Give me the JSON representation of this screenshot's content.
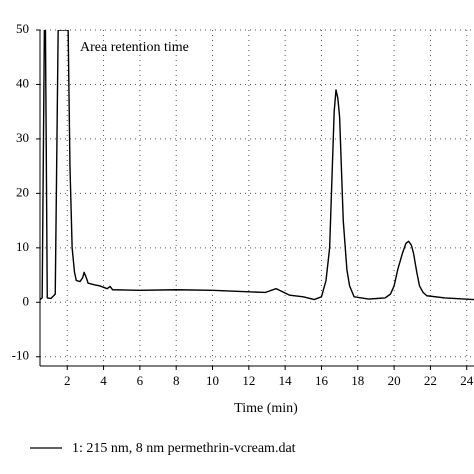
{
  "chart_data": {
    "type": "line",
    "annotation": "Area retention time",
    "x_label": "Time (min)",
    "x": [
      0.5,
      0.62,
      0.74,
      0.8,
      0.9,
      1.1,
      1.34,
      1.5,
      2.05,
      2.15,
      2.27,
      2.4,
      2.5,
      2.7,
      2.85,
      2.93,
      3.05,
      3.15,
      3.5,
      3.8,
      4.2,
      4.36,
      4.5,
      6,
      8,
      10,
      11.5,
      12.9,
      13.5,
      14.25,
      15,
      15.6,
      16,
      16.25,
      16.45,
      16.6,
      16.7,
      16.8,
      16.9,
      17,
      17.2,
      17.4,
      17.55,
      17.8,
      18.6,
      19.5,
      19.8,
      20,
      20.2,
      20.46,
      20.65,
      20.8,
      20.95,
      21.07,
      21.25,
      21.4,
      21.6,
      21.8,
      22.8,
      24.4
    ],
    "series": [
      {
        "name": "1: 215 nm, 8 nm permethrin-vcream.dat",
        "color": "#000000",
        "values": [
          0.5,
          0.8,
          50,
          50,
          0.8,
          0.7,
          1.5,
          50,
          50,
          25,
          10,
          5.5,
          4,
          3.8,
          4.5,
          5.5,
          4.5,
          3.5,
          3.2,
          3,
          2.5,
          2.9,
          2.3,
          2.2,
          2.3,
          2.2,
          2,
          1.8,
          2.5,
          1.3,
          1,
          0.5,
          1,
          4,
          10,
          25,
          35,
          39,
          37.5,
          34,
          15,
          6,
          3,
          1,
          0.6,
          0.8,
          1.5,
          3,
          6,
          9,
          10.8,
          11.2,
          10.5,
          9,
          5.5,
          3,
          1.8,
          1.2,
          0.8,
          0.5
        ]
      }
    ],
    "xlim": [
      0.5,
      24.4
    ],
    "ylim": [
      -11.7,
      50
    ],
    "xticks": [
      2,
      4,
      6,
      8,
      10,
      12,
      14,
      16,
      18,
      20,
      22,
      24
    ],
    "yticks": [
      -10,
      0,
      10,
      20,
      30,
      40,
      50
    ],
    "grid": true
  }
}
